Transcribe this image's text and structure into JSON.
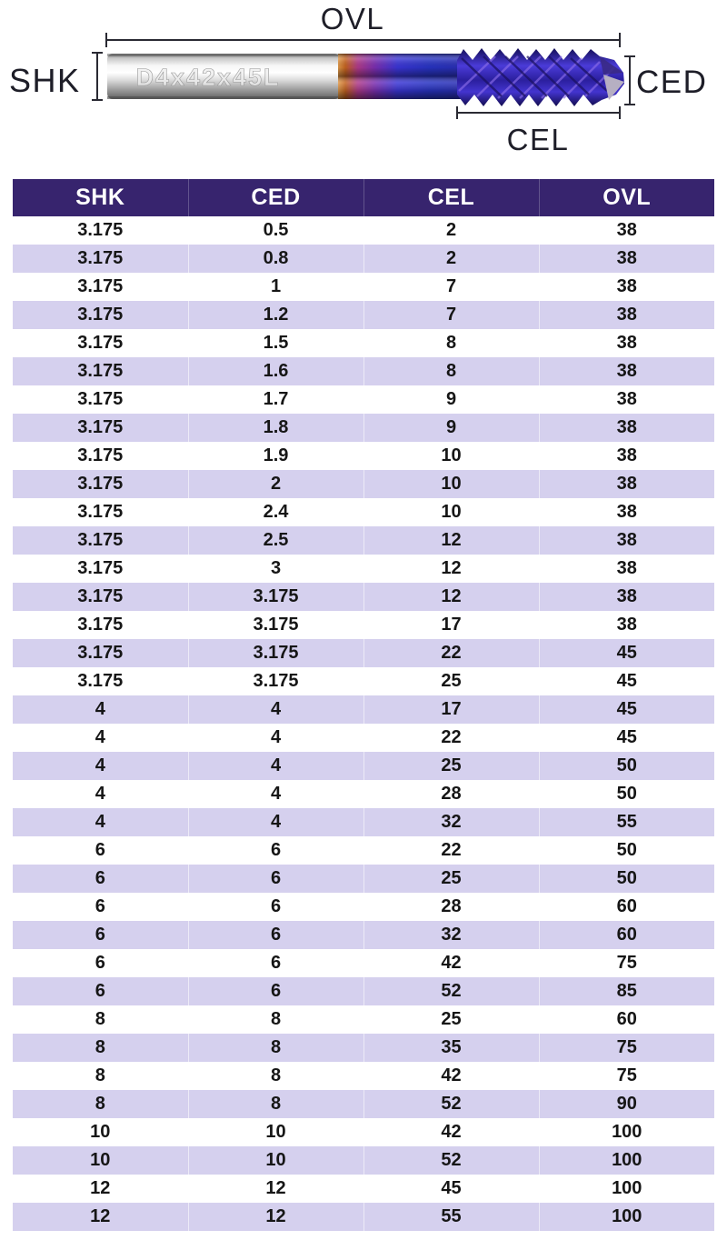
{
  "diagram": {
    "labels": {
      "ovl": "OVL",
      "shk": "SHK",
      "ced": "CED",
      "cel": "CEL"
    },
    "shank_engraving": "D4x42x45L"
  },
  "table": {
    "columns": [
      "SHK",
      "CED",
      "CEL",
      "OVL"
    ],
    "rows": [
      [
        "3.175",
        "0.5",
        "2",
        "38"
      ],
      [
        "3.175",
        "0.8",
        "2",
        "38"
      ],
      [
        "3.175",
        "1",
        "7",
        "38"
      ],
      [
        "3.175",
        "1.2",
        "7",
        "38"
      ],
      [
        "3.175",
        "1.5",
        "8",
        "38"
      ],
      [
        "3.175",
        "1.6",
        "8",
        "38"
      ],
      [
        "3.175",
        "1.7",
        "9",
        "38"
      ],
      [
        "3.175",
        "1.8",
        "9",
        "38"
      ],
      [
        "3.175",
        "1.9",
        "10",
        "38"
      ],
      [
        "3.175",
        "2",
        "10",
        "38"
      ],
      [
        "3.175",
        "2.4",
        "10",
        "38"
      ],
      [
        "3.175",
        "2.5",
        "12",
        "38"
      ],
      [
        "3.175",
        "3",
        "12",
        "38"
      ],
      [
        "3.175",
        "3.175",
        "12",
        "38"
      ],
      [
        "3.175",
        "3.175",
        "17",
        "38"
      ],
      [
        "3.175",
        "3.175",
        "22",
        "45"
      ],
      [
        "3.175",
        "3.175",
        "25",
        "45"
      ],
      [
        "4",
        "4",
        "17",
        "45"
      ],
      [
        "4",
        "4",
        "22",
        "45"
      ],
      [
        "4",
        "4",
        "25",
        "50"
      ],
      [
        "4",
        "4",
        "28",
        "50"
      ],
      [
        "4",
        "4",
        "32",
        "55"
      ],
      [
        "6",
        "6",
        "22",
        "50"
      ],
      [
        "6",
        "6",
        "25",
        "50"
      ],
      [
        "6",
        "6",
        "28",
        "60"
      ],
      [
        "6",
        "6",
        "32",
        "60"
      ],
      [
        "6",
        "6",
        "42",
        "75"
      ],
      [
        "6",
        "6",
        "52",
        "85"
      ],
      [
        "8",
        "8",
        "25",
        "60"
      ],
      [
        "8",
        "8",
        "35",
        "75"
      ],
      [
        "8",
        "8",
        "42",
        "75"
      ],
      [
        "8",
        "8",
        "52",
        "90"
      ],
      [
        "10",
        "10",
        "42",
        "100"
      ],
      [
        "10",
        "10",
        "52",
        "100"
      ],
      [
        "12",
        "12",
        "45",
        "100"
      ],
      [
        "12",
        "12",
        "55",
        "100"
      ]
    ]
  },
  "colors": {
    "header_bg": "#37246e",
    "stripe": "#d5d0ee",
    "coating_blue": "#2e33c9",
    "transition_orange": "#c4631f",
    "transition_magenta": "#a racist"
  }
}
